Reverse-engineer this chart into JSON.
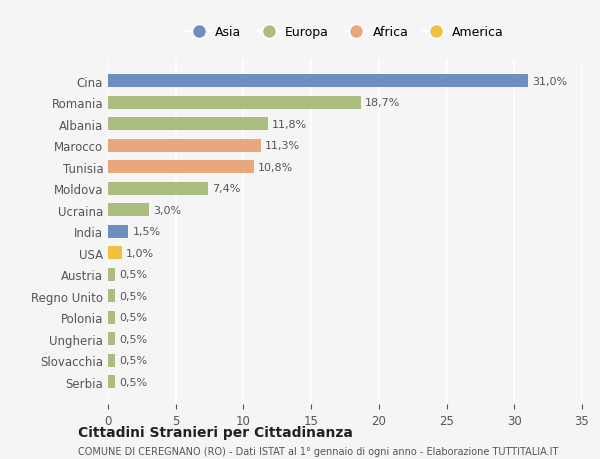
{
  "categories": [
    "Cina",
    "Romania",
    "Albania",
    "Marocco",
    "Tunisia",
    "Moldova",
    "Ucraina",
    "India",
    "USA",
    "Austria",
    "Regno Unito",
    "Polonia",
    "Ungheria",
    "Slovacchia",
    "Serbia"
  ],
  "values": [
    31.0,
    18.7,
    11.8,
    11.3,
    10.8,
    7.4,
    3.0,
    1.5,
    1.0,
    0.5,
    0.5,
    0.5,
    0.5,
    0.5,
    0.5
  ],
  "labels": [
    "31,0%",
    "18,7%",
    "11,8%",
    "11,3%",
    "10,8%",
    "7,4%",
    "3,0%",
    "1,5%",
    "1,0%",
    "0,5%",
    "0,5%",
    "0,5%",
    "0,5%",
    "0,5%",
    "0,5%"
  ],
  "colors": [
    "#6e8ebf",
    "#aabf7e",
    "#aabf7e",
    "#e8a87c",
    "#e8a87c",
    "#aabf7e",
    "#aabf7e",
    "#6e8ebf",
    "#f0c040",
    "#aabf7e",
    "#aabf7e",
    "#aabf7e",
    "#aabf7e",
    "#aabf7e",
    "#aabf7e"
  ],
  "legend_labels": [
    "Asia",
    "Europa",
    "Africa",
    "America"
  ],
  "legend_colors": [
    "#6e8ebf",
    "#aabf7e",
    "#e8a87c",
    "#f0c040"
  ],
  "xlim": [
    0,
    35
  ],
  "xticks": [
    0,
    5,
    10,
    15,
    20,
    25,
    30,
    35
  ],
  "title": "Cittadini Stranieri per Cittadinanza",
  "subtitle": "COMUNE DI CEREGNANO (RO) - Dati ISTAT al 1° gennaio di ogni anno - Elaborazione TUTTITALIA.IT",
  "bg_color": "#f5f5f5",
  "grid_color": "#ffffff",
  "bar_height": 0.6
}
